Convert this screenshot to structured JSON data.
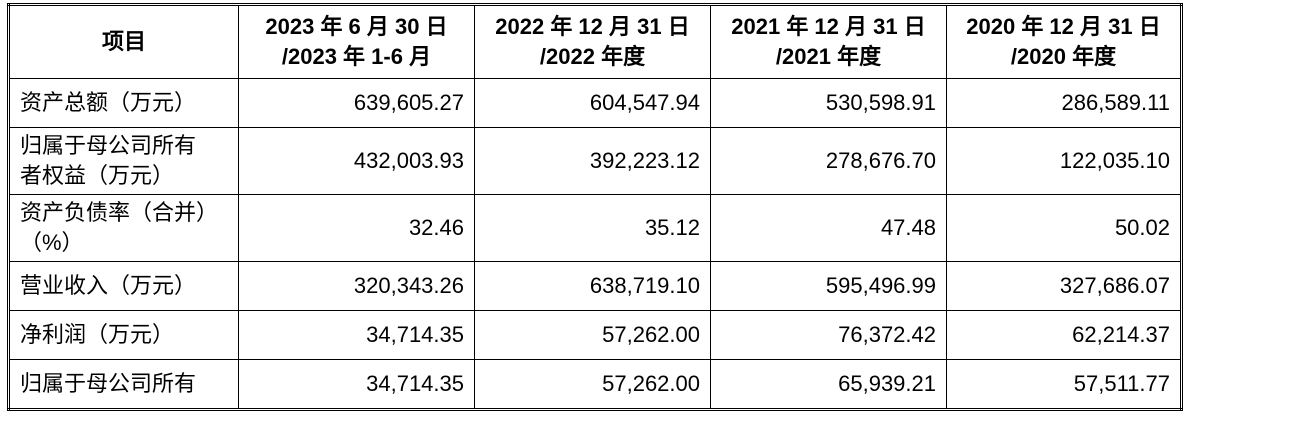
{
  "table": {
    "header": [
      [
        "项目"
      ],
      [
        "2023 年 6 月 30 日",
        "/2023 年 1-6 月"
      ],
      [
        "2022 年 12 月 31 日",
        "/2022 年度"
      ],
      [
        "2021 年 12 月 31 日",
        "/2021 年度"
      ],
      [
        "2020 年 12 月 31 日",
        "/2020 年度"
      ]
    ],
    "rows": [
      [
        [
          "资产总额（万元）"
        ],
        "639,605.27",
        "604,547.94",
        "530,598.91",
        "286,589.11"
      ],
      [
        [
          "归属于母公司所有",
          "者权益（万元）"
        ],
        "432,003.93",
        "392,223.12",
        "278,676.70",
        "122,035.10"
      ],
      [
        [
          "资产负债率（合并）",
          "（%）"
        ],
        "32.46",
        "35.12",
        "47.48",
        "50.02"
      ],
      [
        [
          "营业收入（万元）"
        ],
        "320,343.26",
        "638,719.10",
        "595,496.99",
        "327,686.07"
      ],
      [
        [
          "净利润（万元）"
        ],
        "34,714.35",
        "57,262.00",
        "76,372.42",
        "62,214.37"
      ],
      [
        [
          "归属于母公司所有"
        ],
        "34,714.35",
        "57,262.00",
        "65,939.21",
        "57,511.77"
      ]
    ]
  }
}
